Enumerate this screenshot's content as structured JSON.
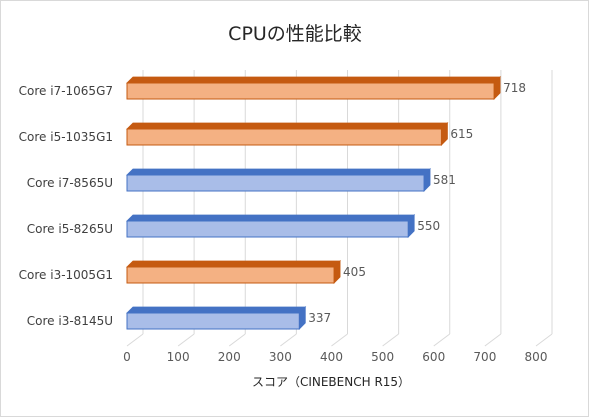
{
  "chart_data": {
    "type": "bar",
    "orientation": "horizontal",
    "title": "CPUの性能比較",
    "xlabel": "スコア（CINEBENCH R15）",
    "ylabel": "",
    "xlim": [
      0,
      800
    ],
    "xticks": [
      0,
      100,
      200,
      300,
      400,
      500,
      600,
      700,
      800
    ],
    "grid": true,
    "categories": [
      "Core i7-1065G7",
      "Core i5-1035G1",
      "Core i7-8565U",
      "Core i5-8265U",
      "Core i3-1005G1",
      "Core i3-8145U"
    ],
    "values": [
      718,
      615,
      581,
      550,
      405,
      337
    ],
    "bar_groups": [
      "orange",
      "orange",
      "blue",
      "blue",
      "orange",
      "blue"
    ],
    "colors": {
      "orange": {
        "front": "#f4b183",
        "top": "#c55a11",
        "side": "#c55a11",
        "stroke": "#c55a11"
      },
      "blue": {
        "front": "#a9bde8",
        "top": "#4472c4",
        "side": "#4472c4",
        "stroke": "#4472c4"
      }
    }
  }
}
